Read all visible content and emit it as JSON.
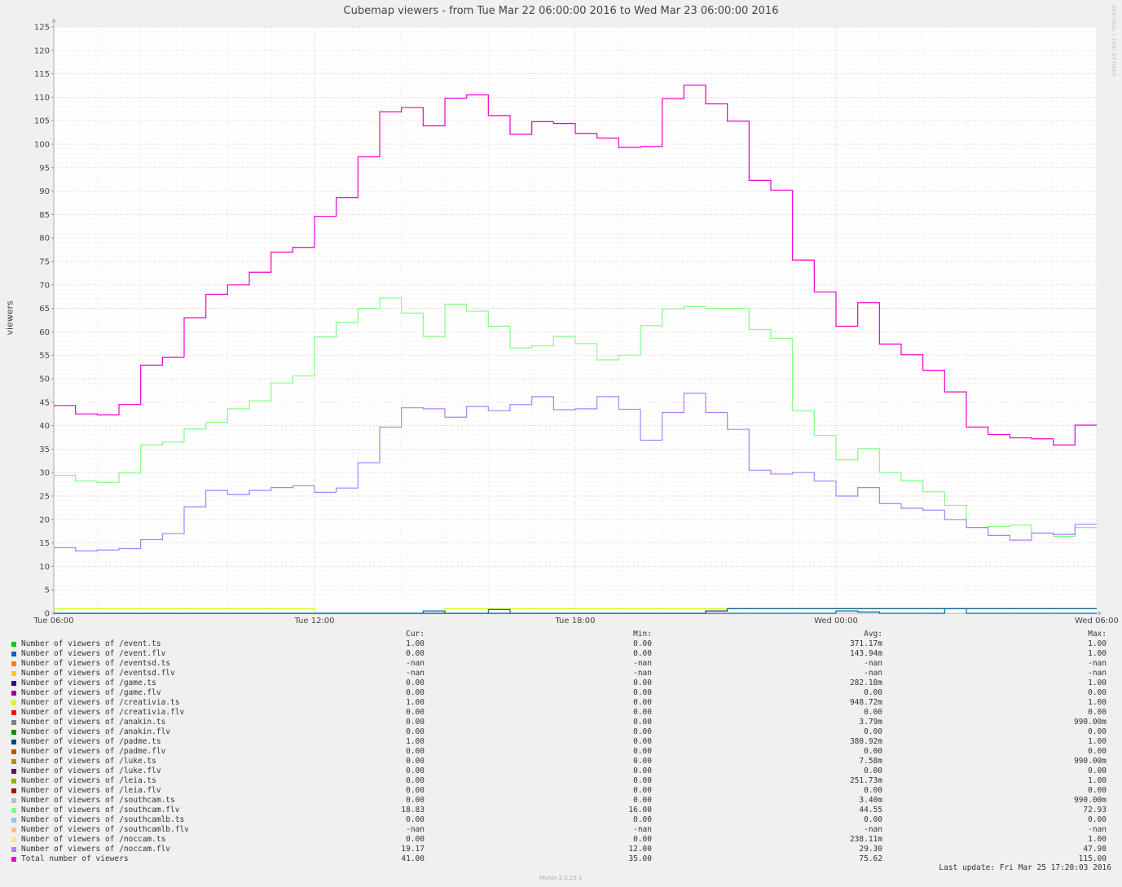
{
  "title": "Cubemap viewers - from Tue Mar 22 06:00:00 2016 to Wed Mar 23 06:00:00 2016",
  "side_credit": "RRDTOOL / TOBI OETIKER",
  "legend_headers": {
    "cur": "Cur:",
    "min": "Min:",
    "avg": "Avg:",
    "max": "Max:"
  },
  "legend": [
    {
      "name": "Number of viewers of /event.ts",
      "color": "#00cc00",
      "cur": "1.00",
      "min": "0.00",
      "avg": "371.17m",
      "max": "1.00"
    },
    {
      "name": "Number of viewers of /event.flv",
      "color": "#0066b3",
      "cur": "0.00",
      "min": "0.00",
      "avg": "143.94m",
      "max": "1.00"
    },
    {
      "name": "Number of viewers of /eventsd.ts",
      "color": "#ff8000",
      "cur": "-nan",
      "min": "-nan",
      "avg": "-nan",
      "max": "-nan"
    },
    {
      "name": "Number of viewers of /eventsd.flv",
      "color": "#ffcc00",
      "cur": "-nan",
      "min": "-nan",
      "avg": "-nan",
      "max": "-nan"
    },
    {
      "name": "Number of viewers of /game.ts",
      "color": "#330099",
      "cur": "0.00",
      "min": "0.00",
      "avg": "282.18m",
      "max": "1.00"
    },
    {
      "name": "Number of viewers of /game.flv",
      "color": "#990099",
      "cur": "0.00",
      "min": "0.00",
      "avg": "0.00",
      "max": "0.00"
    },
    {
      "name": "Number of viewers of /creativia.ts",
      "color": "#ccff00",
      "cur": "1.00",
      "min": "0.00",
      "avg": "948.72m",
      "max": "1.00"
    },
    {
      "name": "Number of viewers of /creativia.flv",
      "color": "#ff0000",
      "cur": "0.00",
      "min": "0.00",
      "avg": "0.00",
      "max": "0.00"
    },
    {
      "name": "Number of viewers of /anakin.ts",
      "color": "#808080",
      "cur": "0.00",
      "min": "0.00",
      "avg": "3.79m",
      "max": "990.00m"
    },
    {
      "name": "Number of viewers of /anakin.flv",
      "color": "#008f00",
      "cur": "0.00",
      "min": "0.00",
      "avg": "0.00",
      "max": "0.00"
    },
    {
      "name": "Number of viewers of /padme.ts",
      "color": "#00487d",
      "cur": "1.00",
      "min": "0.00",
      "avg": "380.92m",
      "max": "1.00"
    },
    {
      "name": "Number of viewers of /padme.flv",
      "color": "#b35a00",
      "cur": "0.00",
      "min": "0.00",
      "avg": "0.00",
      "max": "0.00"
    },
    {
      "name": "Number of viewers of /luke.ts",
      "color": "#b38f00",
      "cur": "0.00",
      "min": "0.00",
      "avg": "7.58m",
      "max": "990.00m"
    },
    {
      "name": "Number of viewers of /luke.flv",
      "color": "#6b006b",
      "cur": "0.00",
      "min": "0.00",
      "avg": "0.00",
      "max": "0.00"
    },
    {
      "name": "Number of viewers of /leia.ts",
      "color": "#8fb300",
      "cur": "0.00",
      "min": "0.00",
      "avg": "251.73m",
      "max": "1.00"
    },
    {
      "name": "Number of viewers of /leia.flv",
      "color": "#b30000",
      "cur": "0.00",
      "min": "0.00",
      "avg": "0.00",
      "max": "0.00"
    },
    {
      "name": "Number of viewers of /southcam.ts",
      "color": "#bebebe",
      "cur": "0.00",
      "min": "0.00",
      "avg": "3.40m",
      "max": "990.00m"
    },
    {
      "name": "Number of viewers of /southcam.flv",
      "color": "#80ff80",
      "cur": "18.83",
      "min": "16.00",
      "avg": "44.55",
      "max": "72.93"
    },
    {
      "name": "Number of viewers of /southcamlb.ts",
      "color": "#80c9ff",
      "cur": "0.00",
      "min": "0.00",
      "avg": "0.00",
      "max": "0.00"
    },
    {
      "name": "Number of viewers of /southcamlb.flv",
      "color": "#ffc080",
      "cur": "-nan",
      "min": "-nan",
      "avg": "-nan",
      "max": "-nan"
    },
    {
      "name": "Number of viewers of /noccam.ts",
      "color": "#ffe680",
      "cur": "0.00",
      "min": "0.00",
      "avg": "238.11m",
      "max": "1.00"
    },
    {
      "name": "Number of viewers of /noccam.flv",
      "color": "#aa80ff",
      "cur": "19.17",
      "min": "12.00",
      "avg": "29.30",
      "max": "47.98"
    },
    {
      "name": "Total number of viewers",
      "color": "#ee00cc",
      "cur": "41.00",
      "min": "35.00",
      "avg": "75.62",
      "max": "115.00"
    }
  ],
  "last_update": "Last update: Fri Mar 25 17:20:03 2016",
  "footer": "Munin 2.0.25-1",
  "chart_data": {
    "type": "line",
    "title": "Cubemap viewers - from Tue Mar 22 06:00:00 2016 to Wed Mar 23 06:00:00 2016",
    "ylabel": "viewers",
    "xlabel": "",
    "xlim": [
      "Tue Mar 22 06:00 2016",
      "Wed Mar 23 06:00 2016"
    ],
    "ylim": [
      0,
      125
    ],
    "y_ticks": [
      0,
      5,
      10,
      15,
      20,
      25,
      30,
      35,
      40,
      45,
      50,
      55,
      60,
      65,
      70,
      75,
      80,
      85,
      90,
      95,
      100,
      105,
      110,
      115,
      120,
      125
    ],
    "x_ticks": [
      "Tue 06:00",
      "Tue 12:00",
      "Tue 18:00",
      "Wed 00:00",
      "Wed 06:00"
    ],
    "grid": true,
    "x_hours": [
      6,
      6.5,
      7,
      7.5,
      8,
      8.5,
      9,
      9.5,
      10,
      10.5,
      11,
      11.5,
      12,
      12.5,
      13,
      13.5,
      14,
      14.5,
      15,
      15.5,
      16,
      16.5,
      17,
      17.5,
      18,
      18.5,
      19,
      19.5,
      20,
      20.5,
      21,
      21.5,
      22,
      22.5,
      23,
      23.5,
      24,
      24.5,
      25,
      25.5,
      26,
      26.5,
      27,
      27.5,
      28,
      28.5,
      29,
      29.5,
      30
    ],
    "series": [
      {
        "name": "Total number of viewers",
        "color": "#ee00cc",
        "values": [
          44.3,
          42.5,
          42.3,
          44.5,
          52.9,
          54.6,
          63,
          68,
          70,
          72.7,
          77,
          78,
          84.6,
          88.6,
          97.3,
          106.9,
          107.8,
          103.9,
          109.8,
          110.5,
          106.1,
          102.1,
          104.8,
          104.4,
          102.3,
          101.3,
          99.3,
          99.5,
          109.7,
          112.6,
          108.6,
          104.9,
          92.3,
          90.2,
          75.3,
          68.5,
          61.2,
          66.2,
          57.4,
          55.1,
          51.8,
          47.2,
          39.7,
          38.1,
          37.4,
          37.2,
          35.9,
          40.1,
          40.1
        ]
      },
      {
        "name": "Number of viewers of /southcam.flv",
        "color": "#80ff80",
        "values": [
          29.4,
          28.2,
          27.9,
          29.9,
          35.9,
          36.5,
          39.3,
          40.7,
          43.6,
          45.3,
          49.1,
          50.6,
          58.9,
          62,
          65,
          67.2,
          64,
          59,
          65.9,
          64.4,
          61.2,
          56.6,
          57,
          59,
          57.5,
          54,
          55,
          61.3,
          64.9,
          65.4,
          65,
          65,
          60.5,
          58.6,
          43.2,
          37.9,
          32.7,
          35.1,
          30,
          28.3,
          25.9,
          23,
          18.3,
          18.5,
          18.8,
          17.1,
          16.4,
          18.3,
          18.3
        ]
      },
      {
        "name": "Number of viewers of /noccam.flv",
        "color": "#aa80ff",
        "values": [
          14,
          13.3,
          13.5,
          13.8,
          15.7,
          17,
          22.7,
          26.2,
          25.3,
          26.2,
          26.8,
          27.2,
          25.8,
          26.7,
          32.1,
          39.7,
          43.8,
          43.6,
          41.8,
          44.1,
          43.2,
          44.5,
          46.2,
          43.4,
          43.6,
          46.2,
          43.5,
          36.9,
          42.8,
          46.9,
          42.8,
          39.2,
          30.5,
          29.7,
          30,
          28.2,
          25,
          26.8,
          23.4,
          22.4,
          22,
          20,
          18.3,
          16.6,
          15.6,
          17.1,
          16.8,
          19,
          19
        ]
      },
      {
        "name": "Number of viewers of /creativia.ts",
        "color": "#ccff00",
        "values": [
          1,
          1,
          1,
          1,
          1,
          1,
          1,
          1,
          1,
          1,
          1,
          1,
          0,
          0,
          0,
          0,
          0,
          0,
          1,
          1,
          1,
          1,
          1,
          1,
          1,
          1,
          1,
          1,
          1,
          1,
          1,
          1,
          1,
          1,
          1,
          1,
          1,
          1,
          1,
          1,
          1,
          1,
          1,
          1,
          1,
          1,
          1,
          1,
          1
        ]
      },
      {
        "name": "Number of viewers of /padme.ts",
        "color": "#00487d",
        "values": [
          0,
          0,
          0,
          0,
          0,
          0,
          0,
          0,
          0,
          0,
          0,
          0,
          0,
          0,
          0,
          0,
          0,
          0,
          0,
          0,
          0,
          0,
          0,
          0,
          0,
          0,
          0,
          0,
          0,
          0,
          0.5,
          1,
          1,
          1,
          1,
          1,
          1,
          1,
          1,
          1,
          1,
          1,
          1,
          1,
          1,
          1,
          1,
          1,
          1
        ]
      },
      {
        "name": "Number of viewers of /event.flv",
        "color": "#0066b3",
        "values": [
          0,
          0,
          0,
          0,
          0,
          0,
          0,
          0,
          0,
          0,
          0,
          0,
          0,
          0,
          0,
          0,
          0,
          0.5,
          0,
          0,
          0.8,
          0,
          0,
          0,
          0,
          0,
          0,
          0,
          0,
          0,
          0,
          0,
          0,
          0,
          0,
          0,
          0.5,
          0.3,
          0,
          0,
          0,
          1,
          0,
          0,
          0,
          0,
          0,
          0,
          0
        ]
      }
    ]
  }
}
